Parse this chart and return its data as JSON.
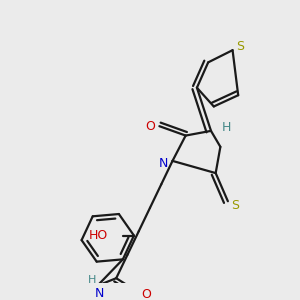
{
  "bg_color": "#ebebeb",
  "bond_color": "#1a1a1a",
  "bond_width": 1.6,
  "label_colors": {
    "S": "#999900",
    "O": "#cc0000",
    "N": "#0000cc",
    "H": "#448888",
    "C": "#1a1a1a"
  }
}
